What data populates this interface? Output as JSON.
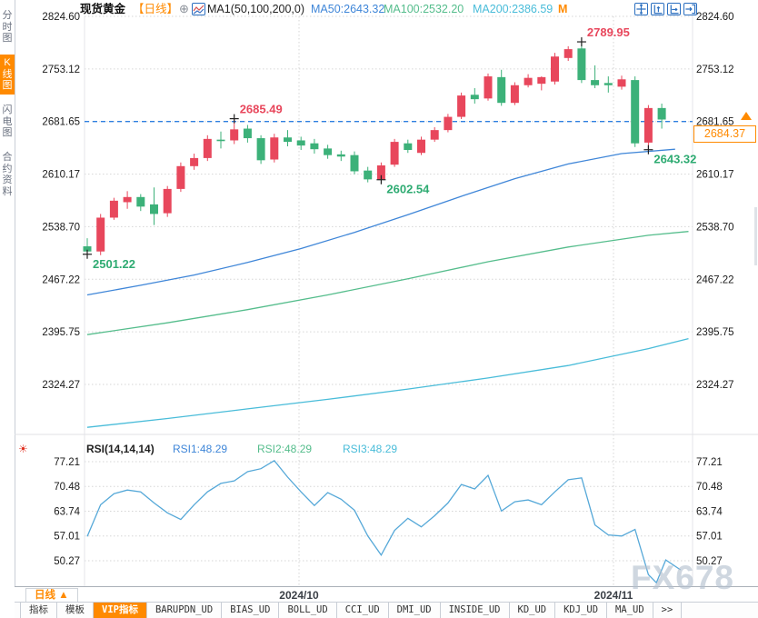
{
  "app": {
    "watermark": "FX678"
  },
  "sidebar": {
    "items": [
      {
        "label": "分时图",
        "active": false
      },
      {
        "label": "K线图",
        "active": true
      },
      {
        "label": "闪电图",
        "active": false
      },
      {
        "label": "合约资料",
        "active": false
      }
    ]
  },
  "header": {
    "symbol": "现货黄金",
    "period_tag": "【日线】",
    "add_icon": "⊕",
    "indicator_label": "MA1(50,100,200,0)",
    "ma50": "MA50:2643.32",
    "ma100": "MA100:2532.20",
    "ma200": "MA200:2386.59",
    "m_button": "M"
  },
  "icons": {
    "toolbar": [
      "pan-icon",
      "axis-scale-vertical-icon",
      "axis-scale-horizontal-icon",
      "exit-chart-icon"
    ],
    "indicator_chart": "line-chart-icon",
    "rsi_settings": "sun-icon"
  },
  "colors": {
    "up": "#e8475c",
    "down": "#3cb179",
    "ma50": "#3f86d8",
    "ma100": "#55bd8c",
    "ma200": "#49bcd9",
    "rsi_line": "#55a8d8",
    "dashed_line": "#2e7fe0",
    "accent": "#ff8a00",
    "grid": "#d6d6d6",
    "axis_text": "#1a1a1a",
    "anno_high": "#e8475c",
    "anno_low": "#2eab72"
  },
  "price_marker": {
    "value": "2684.37"
  },
  "rsi_panel": {
    "settings_icon": "☀",
    "title": "RSI(14,14,14)",
    "rsi1": "RSI1:48.29",
    "rsi2": "RSI2:48.29",
    "rsi3": "RSI3:48.29"
  },
  "footer": {
    "period_button": {
      "label": "日线",
      "arrow": "▲"
    },
    "date_labels": [
      "2024/10",
      "2024/11"
    ],
    "tabs": [
      {
        "label": "指标",
        "active": false
      },
      {
        "label": "模板",
        "active": false
      },
      {
        "label": "VIP指标",
        "active": true
      },
      {
        "label": "BARUPDN_UD",
        "active": false
      },
      {
        "label": "BIAS_UD",
        "active": false
      },
      {
        "label": "BOLL_UD",
        "active": false
      },
      {
        "label": "CCI_UD",
        "active": false
      },
      {
        "label": "DMI_UD",
        "active": false
      },
      {
        "label": "INSIDE_UD",
        "active": false
      },
      {
        "label": "KD_UD",
        "active": false
      },
      {
        "label": "KDJ_UD",
        "active": false
      },
      {
        "label": "MA_UD",
        "active": false
      },
      {
        "label": ">>",
        "active": false
      }
    ]
  },
  "chart_data": [
    {
      "type": "candlestick",
      "title": "现货黄金 日线",
      "ylim": [
        2290,
        2840
      ],
      "grid": "dotted",
      "legend_position": "top",
      "y_ticks": [
        "2824.60",
        "2753.12",
        "2681.65",
        "2610.17",
        "2538.70",
        "2467.22",
        "2395.75",
        "2324.27"
      ],
      "x_tick_labels": [
        "2024/10",
        "2024/11"
      ],
      "candles_ohlc": [
        [
          2512,
          2523,
          2501.22,
          2505
        ],
        [
          2505,
          2556,
          2500,
          2551
        ],
        [
          2551,
          2578,
          2548,
          2574
        ],
        [
          2572,
          2587,
          2563,
          2579
        ],
        [
          2579,
          2583,
          2560,
          2566
        ],
        [
          2569,
          2592,
          2541,
          2556
        ],
        [
          2557,
          2594,
          2552,
          2590
        ],
        [
          2590,
          2626,
          2586,
          2621
        ],
        [
          2621,
          2638,
          2616,
          2632
        ],
        [
          2632,
          2663,
          2628,
          2658
        ],
        [
          2657,
          2668,
          2645,
          2655
        ],
        [
          2656,
          2685.49,
          2651,
          2671
        ],
        [
          2672,
          2677,
          2653,
          2659
        ],
        [
          2659,
          2663,
          2624,
          2629
        ],
        [
          2630,
          2665,
          2626,
          2660
        ],
        [
          2660,
          2670,
          2648,
          2654
        ],
        [
          2656,
          2661,
          2643,
          2649
        ],
        [
          2652,
          2658,
          2638,
          2644
        ],
        [
          2645,
          2650,
          2631,
          2636
        ],
        [
          2637,
          2642,
          2628,
          2634
        ],
        [
          2636,
          2641,
          2610,
          2614
        ],
        [
          2615,
          2620,
          2599,
          2603
        ],
        [
          2603,
          2626,
          2602.54,
          2622
        ],
        [
          2623,
          2658,
          2620,
          2654
        ],
        [
          2652,
          2657,
          2639,
          2643
        ],
        [
          2639,
          2661,
          2636,
          2657
        ],
        [
          2657,
          2674,
          2654,
          2670
        ],
        [
          2670,
          2692,
          2667,
          2688
        ],
        [
          2688,
          2721,
          2685,
          2717
        ],
        [
          2718,
          2727,
          2706,
          2712
        ],
        [
          2713,
          2747,
          2710,
          2743
        ],
        [
          2742,
          2752,
          2703,
          2707
        ],
        [
          2707,
          2735,
          2704,
          2731
        ],
        [
          2731,
          2746,
          2728,
          2741
        ],
        [
          2733,
          2743,
          2724,
          2742
        ],
        [
          2736,
          2775,
          2732,
          2770
        ],
        [
          2768,
          2784,
          2764,
          2780
        ],
        [
          2781,
          2789.95,
          2734,
          2738
        ],
        [
          2738,
          2758,
          2727,
          2731
        ],
        [
          2734,
          2743,
          2721,
          2731
        ],
        [
          2729,
          2744,
          2725,
          2739
        ],
        [
          2738,
          2743,
          2647,
          2652
        ],
        [
          2653,
          2704,
          2643.32,
          2700
        ],
        [
          2700,
          2706,
          2672,
          2684.37
        ]
      ],
      "series": [
        {
          "name": "MA50",
          "last": 2643.32,
          "points": [
            [
              0,
              2446
            ],
            [
              4,
              2459
            ],
            [
              8,
              2473
            ],
            [
              12,
              2490
            ],
            [
              16,
              2509
            ],
            [
              20,
              2531
            ],
            [
              24,
              2555
            ],
            [
              28,
              2580
            ],
            [
              32,
              2604
            ],
            [
              36,
              2624
            ],
            [
              40,
              2638
            ],
            [
              44,
              2644
            ]
          ]
        },
        {
          "name": "MA100",
          "last": 2532.2,
          "points": [
            [
              0,
              2392
            ],
            [
              6,
              2408
            ],
            [
              12,
              2426
            ],
            [
              18,
              2446
            ],
            [
              24,
              2468
            ],
            [
              30,
              2491
            ],
            [
              36,
              2511
            ],
            [
              42,
              2527
            ],
            [
              45,
              2532.2
            ]
          ]
        },
        {
          "name": "MA200",
          "last": 2386.59,
          "points": [
            [
              0,
              2266
            ],
            [
              6,
              2278
            ],
            [
              12,
              2291
            ],
            [
              18,
              2304
            ],
            [
              24,
              2318
            ],
            [
              30,
              2333
            ],
            [
              36,
              2350
            ],
            [
              42,
              2373
            ],
            [
              45,
              2386.59
            ]
          ]
        }
      ],
      "annotations": [
        {
          "label": "2501.22",
          "kind": "low",
          "candle": 0,
          "price": 2501.22
        },
        {
          "label": "2685.49",
          "kind": "high",
          "candle": 11,
          "price": 2685.49
        },
        {
          "label": "2602.54",
          "kind": "low",
          "candle": 22,
          "price": 2602.54
        },
        {
          "label": "2789.95",
          "kind": "high",
          "candle": 37,
          "price": 2789.95
        },
        {
          "label": "2643.32",
          "kind": "low",
          "candle": 42,
          "price": 2643.32
        }
      ],
      "dashed_level": 2681.65,
      "current_price": 2684.37
    },
    {
      "type": "line",
      "title": "RSI(14,14,14)",
      "y_ticks": [
        "77.21",
        "70.48",
        "63.74",
        "57.01",
        "50.27"
      ],
      "last_values": {
        "rsi1": 48.29,
        "rsi2": 48.29,
        "rsi3": 48.29
      },
      "points": [
        [
          0,
          56.9
        ],
        [
          1,
          65.5
        ],
        [
          2,
          68.5
        ],
        [
          3,
          69.5
        ],
        [
          4,
          69.0
        ],
        [
          5,
          66.0
        ],
        [
          6,
          63.3
        ],
        [
          7,
          61.5
        ],
        [
          8,
          65.5
        ],
        [
          9,
          69.0
        ],
        [
          10,
          71.3
        ],
        [
          11,
          72.0
        ],
        [
          12,
          74.5
        ],
        [
          13,
          75.3
        ],
        [
          14,
          77.5
        ],
        [
          15,
          73.0
        ],
        [
          16,
          69.0
        ],
        [
          17,
          65.3
        ],
        [
          18,
          68.8
        ],
        [
          19,
          67.0
        ],
        [
          20,
          64.0
        ],
        [
          21,
          57.0
        ],
        [
          22,
          51.8
        ],
        [
          23,
          58.5
        ],
        [
          24,
          61.8
        ],
        [
          25,
          59.5
        ],
        [
          26,
          62.5
        ],
        [
          27,
          66.0
        ],
        [
          28,
          71.0
        ],
        [
          29,
          69.8
        ],
        [
          30,
          73.5
        ],
        [
          31,
          63.8
        ],
        [
          32,
          66.3
        ],
        [
          33,
          66.8
        ],
        [
          34,
          65.5
        ],
        [
          35,
          69.0
        ],
        [
          36,
          72.3
        ],
        [
          37,
          72.8
        ],
        [
          38,
          60.0
        ],
        [
          39,
          57.3
        ],
        [
          40,
          57.0
        ],
        [
          41,
          58.8
        ],
        [
          42,
          46.5
        ],
        [
          42.6,
          44.3
        ],
        [
          43.3,
          50.5
        ],
        [
          44.4,
          47.8
        ]
      ]
    }
  ]
}
